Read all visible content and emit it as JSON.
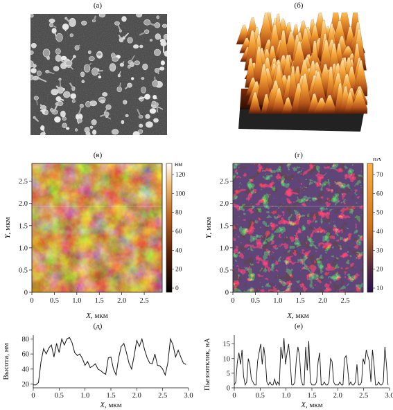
{
  "panels": {
    "a": {
      "label": "(а)"
    },
    "b": {
      "label": "(б)"
    },
    "v": {
      "label": "(в)",
      "xlabel_var": "X",
      "xlabel_unit": ", мкм",
      "ylabel_var": "Y",
      "ylabel_unit": ", мкм",
      "x_ticks": [
        "0",
        "0.5",
        "1.0",
        "1.5",
        "2.0",
        "2.5"
      ],
      "y_ticks": [
        "0",
        "0.5",
        "1.0",
        "1.5",
        "2.0",
        "2.5"
      ],
      "colorbar_unit": "нм",
      "colorbar_ticks": [
        "120",
        "100",
        "80",
        "60",
        "40",
        "20",
        "0"
      ]
    },
    "g": {
      "label": "(г)",
      "xlabel_var": "X",
      "xlabel_unit": ", мкм",
      "ylabel_var": "Y",
      "ylabel_unit": ", мкм",
      "x_ticks": [
        "0",
        "0.5",
        "1.0",
        "1.5",
        "2.0",
        "2.5"
      ],
      "y_ticks": [
        "0",
        "0.5",
        "1.0",
        "1.5",
        "2.0",
        "2.5"
      ],
      "colorbar_unit": "нА",
      "colorbar_ticks": [
        "70",
        "60",
        "50",
        "40",
        "30",
        "20",
        "10"
      ]
    },
    "d": {
      "label": "(д)",
      "xlabel_var": "X",
      "xlabel_unit": ", мкм",
      "ylabel": "Высота, нм",
      "x_ticks": [
        "0",
        "0.5",
        "1.0",
        "1.5",
        "2.0",
        "2.5",
        "3.0"
      ],
      "y_ticks": [
        "20",
        "40",
        "60",
        "80"
      ]
    },
    "e": {
      "label": "(е)",
      "xlabel_var": "X",
      "xlabel_unit": ", мкм",
      "ylabel": "Пьезоотклик, нА",
      "x_ticks": [
        "0",
        "0.5",
        "1.0",
        "1.5",
        "2.0",
        "2.5",
        "3.0"
      ],
      "y_ticks": [
        "0",
        "5",
        "10",
        "15"
      ]
    }
  },
  "colors": {
    "afm_dark": "#1a0a02",
    "afm_mid": "#a0521a",
    "afm_light": "#fff4d8",
    "pfm_bg": "#1e1030",
    "pfm_spot": "#f08a1e",
    "sem_bg": "#3a3a3a"
  },
  "chart_data": [
    {
      "type": "line",
      "panel": "д",
      "xlabel": "X, мкм",
      "ylabel": "Высота, нм",
      "xlim": [
        0,
        3.0
      ],
      "ylim": [
        15,
        85
      ],
      "x": [
        0.0,
        0.05,
        0.1,
        0.15,
        0.2,
        0.25,
        0.3,
        0.35,
        0.4,
        0.45,
        0.5,
        0.55,
        0.6,
        0.65,
        0.7,
        0.75,
        0.8,
        0.85,
        0.9,
        0.95,
        1.0,
        1.05,
        1.1,
        1.15,
        1.2,
        1.25,
        1.3,
        1.35,
        1.4,
        1.45,
        1.5,
        1.55,
        1.6,
        1.65,
        1.7,
        1.75,
        1.8,
        1.85,
        1.9,
        1.95,
        2.0,
        2.05,
        2.1,
        2.15,
        2.2,
        2.25,
        2.3,
        2.35,
        2.4,
        2.45,
        2.5,
        2.55,
        2.6,
        2.65,
        2.7,
        2.75,
        2.8,
        2.85,
        2.9,
        2.95
      ],
      "values": [
        19,
        19,
        22,
        50,
        67,
        60,
        68,
        72,
        56,
        74,
        62,
        80,
        72,
        80,
        82,
        75,
        62,
        58,
        60,
        54,
        45,
        50,
        42,
        44,
        47,
        40,
        38,
        35,
        33,
        55,
        56,
        40,
        32,
        55,
        70,
        74,
        62,
        48,
        40,
        58,
        78,
        70,
        80,
        66,
        55,
        48,
        47,
        60,
        45,
        44,
        40,
        32,
        48,
        80,
        72,
        56,
        65,
        56,
        48,
        46
      ]
    },
    {
      "type": "line",
      "panel": "е",
      "xlabel": "X, мкм",
      "ylabel": "Пьезоотклик, нА",
      "xlim": [
        0,
        3.0
      ],
      "ylim": [
        0,
        18
      ],
      "x": [
        0.0,
        0.03,
        0.06,
        0.09,
        0.12,
        0.15,
        0.18,
        0.21,
        0.24,
        0.27,
        0.3,
        0.33,
        0.36,
        0.39,
        0.42,
        0.45,
        0.48,
        0.51,
        0.54,
        0.57,
        0.6,
        0.63,
        0.66,
        0.69,
        0.72,
        0.75,
        0.78,
        0.81,
        0.84,
        0.87,
        0.9,
        0.93,
        0.96,
        0.99,
        1.02,
        1.05,
        1.08,
        1.11,
        1.14,
        1.17,
        1.2,
        1.23,
        1.26,
        1.29,
        1.32,
        1.35,
        1.38,
        1.41,
        1.44,
        1.47,
        1.5,
        1.53,
        1.56,
        1.59,
        1.62,
        1.65,
        1.68,
        1.71,
        1.74,
        1.77,
        1.8,
        1.83,
        1.86,
        1.89,
        1.92,
        1.95,
        1.98,
        2.01,
        2.04,
        2.07,
        2.1,
        2.13,
        2.16,
        2.19,
        2.22,
        2.25,
        2.28,
        2.31,
        2.34,
        2.37,
        2.4,
        2.43,
        2.46,
        2.49,
        2.52,
        2.55,
        2.58,
        2.61,
        2.64,
        2.67,
        2.7,
        2.73,
        2.76,
        2.79,
        2.82,
        2.85,
        2.88,
        2.91,
        2.94,
        2.97
      ],
      "values": [
        1,
        2,
        9,
        12,
        8,
        13,
        4,
        1,
        2,
        10,
        8,
        3,
        2,
        1,
        1,
        9,
        12,
        15,
        8,
        14,
        10,
        2,
        1,
        2,
        1,
        1,
        3,
        1,
        2,
        1,
        14,
        10,
        17,
        8,
        12,
        15,
        9,
        1,
        1,
        2,
        10,
        14,
        11,
        3,
        1,
        1,
        14,
        6,
        16,
        2,
        1,
        1,
        1,
        2,
        9,
        12,
        1,
        1,
        2,
        1,
        1,
        2,
        10,
        9,
        2,
        1,
        1,
        1,
        2,
        1,
        1,
        10,
        11,
        7,
        1,
        2,
        1,
        1,
        2,
        8,
        1,
        1,
        2,
        10,
        8,
        13,
        11,
        9,
        2,
        13,
        8,
        1,
        1,
        2,
        1,
        1,
        2,
        14,
        8,
        1
      ]
    }
  ]
}
